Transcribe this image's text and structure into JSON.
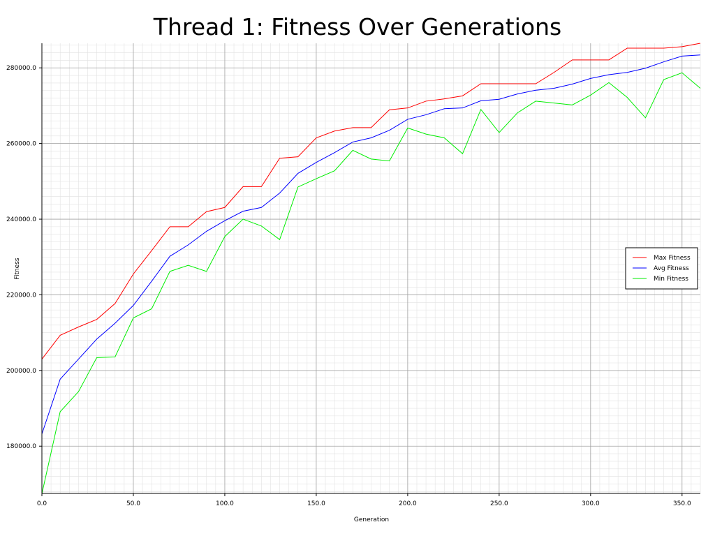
{
  "chart_data": {
    "type": "line",
    "title": "Thread 1: Fitness Over Generations",
    "xlabel": "Generation",
    "ylabel": "Fitness",
    "xlim": [
      0,
      360
    ],
    "ylim": [
      167500,
      286500
    ],
    "grid": true,
    "legend_position": "right",
    "x_ticks": [
      0,
      50,
      100,
      150,
      200,
      250,
      300,
      350
    ],
    "x_tick_labels": [
      "0.0",
      "50.0",
      "100.0",
      "150.0",
      "200.0",
      "250.0",
      "300.0",
      "350.0"
    ],
    "y_ticks": [
      180000,
      200000,
      220000,
      240000,
      260000,
      280000
    ],
    "y_tick_labels": [
      "180000.0",
      "200000.0",
      "220000.0",
      "240000.0",
      "260000.0",
      "280000.0"
    ],
    "x": [
      0,
      10,
      20,
      30,
      40,
      50,
      60,
      70,
      80,
      90,
      100,
      110,
      120,
      130,
      140,
      150,
      160,
      170,
      180,
      190,
      200,
      210,
      220,
      230,
      240,
      250,
      260,
      270,
      280,
      290,
      300,
      310,
      320,
      330,
      340,
      350,
      360
    ],
    "series": [
      {
        "name": "Max Fitness",
        "color": "#ff0000",
        "values": [
          203000,
          209300,
          211500,
          213500,
          217700,
          225500,
          231700,
          238000,
          238000,
          242000,
          243100,
          248600,
          248600,
          256100,
          256500,
          261500,
          263300,
          264200,
          264200,
          268900,
          269400,
          271200,
          271800,
          272600,
          275800,
          275800,
          275800,
          275800,
          278800,
          282100,
          282100,
          282100,
          285200,
          285200,
          285200,
          285600,
          286500
        ]
      },
      {
        "name": "Avg Fitness",
        "color": "#0000ff",
        "values": [
          183200,
          197700,
          203000,
          208300,
          212500,
          217200,
          223600,
          230200,
          233200,
          236800,
          239600,
          242100,
          243100,
          246900,
          252100,
          255000,
          257600,
          260400,
          261500,
          263500,
          266400,
          267600,
          269200,
          269400,
          271300,
          271700,
          273100,
          274100,
          274600,
          275700,
          277200,
          278200,
          278800,
          279900,
          281600,
          283100,
          283400
        ]
      },
      {
        "name": "Min Fitness",
        "color": "#00ee00",
        "values": [
          167400,
          189100,
          194400,
          203400,
          203600,
          213900,
          216300,
          226200,
          227800,
          226200,
          235400,
          240000,
          238200,
          234600,
          248500,
          250700,
          252800,
          258200,
          255900,
          255400,
          264100,
          262500,
          261500,
          257300,
          269000,
          262900,
          268100,
          271200,
          270700,
          270200,
          272800,
          276100,
          272200,
          266800,
          276900,
          278700,
          274600
        ]
      }
    ]
  }
}
